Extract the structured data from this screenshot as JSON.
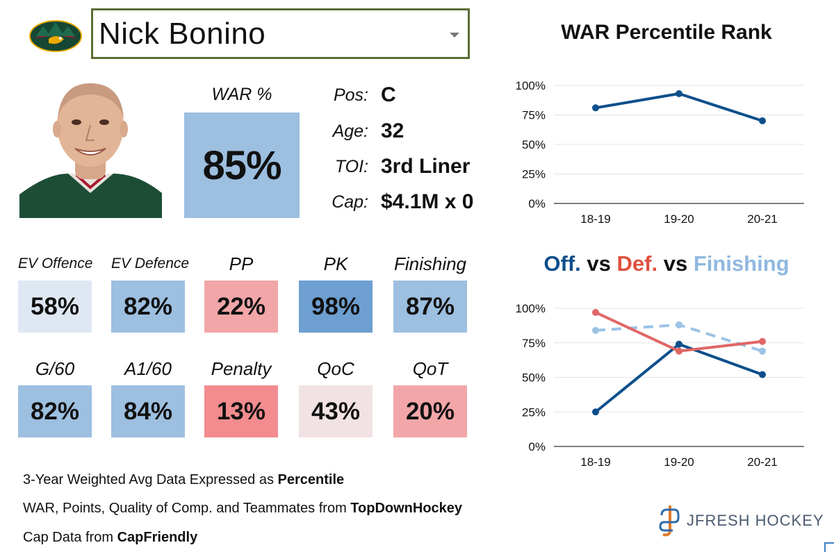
{
  "player": {
    "name": "Nick Bonino",
    "team_logo_icon": "minnesota-wild-logo-icon",
    "headshot_icon": "player-headshot-icon"
  },
  "war": {
    "label": "WAR %",
    "value": "85%",
    "color": "#9dbfe0"
  },
  "info": [
    {
      "key": "Pos:",
      "value": "C"
    },
    {
      "key": "Age:",
      "value": "32"
    },
    {
      "key": "TOI:",
      "value": "3rd Liner"
    },
    {
      "key": "Cap:",
      "value": "$4.1M x 0"
    }
  ],
  "stats": [
    {
      "label": "EV Offence",
      "value": "58%",
      "color": "#dfe8f2"
    },
    {
      "label": "EV Defence",
      "value": "82%",
      "color": "#9dbfe0"
    },
    {
      "label": "PP",
      "value": "22%",
      "color": "#f2a6a8"
    },
    {
      "label": "PK",
      "value": "98%",
      "color": "#6d9fd0"
    },
    {
      "label": "Finishing",
      "value": "87%",
      "color": "#9dbfe0"
    },
    {
      "label": "G/60",
      "value": "82%",
      "color": "#9dbfe0"
    },
    {
      "label": "A1/60",
      "value": "84%",
      "color": "#9dbfe0"
    },
    {
      "label": "Penalty",
      "value": "13%",
      "color": "#f28c8e"
    },
    {
      "label": "QoC",
      "value": "43%",
      "color": "#f1e2e3"
    },
    {
      "label": "QoT",
      "value": "20%",
      "color": "#f2a6a8"
    }
  ],
  "footer": {
    "line1_text": "3-Year Weighted Avg Data Expressed as ",
    "line1_bold": "Percentile",
    "line2_text": "WAR, Points, Quality of Comp. and Teammates from ",
    "line2_bold": "TopDownHockey",
    "line3_text": "Cap Data from ",
    "line3_bold": "CapFriendly"
  },
  "brand": {
    "name": "JFRESH HOCKEY",
    "icon": "jfresh-hockey-logo-icon"
  },
  "chart_data": [
    {
      "type": "line",
      "title": "WAR Percentile Rank",
      "categories": [
        "18-19",
        "19-20",
        "20-21"
      ],
      "yticks": [
        "0%",
        "25%",
        "50%",
        "75%",
        "100%"
      ],
      "ylim": [
        0,
        100
      ],
      "series": [
        {
          "name": "WAR",
          "values": [
            81,
            93,
            70
          ],
          "color": "#0d4f8b",
          "dashed": false
        }
      ]
    },
    {
      "type": "line",
      "title_parts": [
        {
          "text": "Off.",
          "color": "#0d4f8b"
        },
        {
          "text": " vs ",
          "color": "#111111"
        },
        {
          "text": "Def.",
          "color": "#e0503f"
        },
        {
          "text": " vs ",
          "color": "#111111"
        },
        {
          "text": "Finishing",
          "color": "#8fb8e0"
        }
      ],
      "categories": [
        "18-19",
        "19-20",
        "20-21"
      ],
      "yticks": [
        "0%",
        "25%",
        "50%",
        "75%",
        "100%"
      ],
      "ylim": [
        0,
        100
      ],
      "series": [
        {
          "name": "Finishing",
          "values": [
            84,
            88,
            69
          ],
          "color": "#9cc3e6",
          "dashed": true
        },
        {
          "name": "Off.",
          "values": [
            25,
            74,
            52
          ],
          "color": "#0d4f8b",
          "dashed": false
        },
        {
          "name": "Def.",
          "values": [
            97,
            69,
            76
          ],
          "color": "#e06666",
          "dashed": false
        }
      ]
    }
  ]
}
